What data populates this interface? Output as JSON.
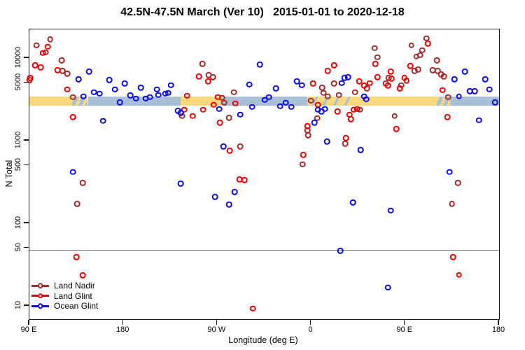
{
  "title": "42.5N-47.5N March (Ver 10)   2015-01-01 to 2020-12-18",
  "legend": {
    "entries": [
      {
        "label": "Land Nadir",
        "color": "#A52A2A"
      },
      {
        "label": "Land Glint",
        "color": "#F00000"
      },
      {
        "label": "Ocean Glint",
        "color": "#0A0AF0"
      }
    ]
  },
  "colors": {
    "band_land": "#FAD87C",
    "band_ocean": "#A9BFD8",
    "reference_line": "#7e7e7e",
    "axis": "#1a1a1a"
  },
  "chart_data": {
    "type": "scatter",
    "title": "42.5N-47.5N March (Ver 10)   2015-01-01 to 2020-12-18",
    "xlabel": "Longitude (deg E)",
    "ylabel": "N Total",
    "x_axis": {
      "range": [
        90,
        540
      ],
      "ticks": [
        90,
        180,
        270,
        360,
        450,
        540
      ],
      "labels": [
        "90 E",
        "180",
        "90 W",
        "0",
        "90 E",
        "180"
      ]
    },
    "y_axis": {
      "scale": "log",
      "range": [
        6.9,
        22200
      ],
      "ticks": [
        10,
        50,
        100,
        500,
        1000,
        5000,
        10000
      ],
      "labels": [
        "10",
        "50",
        "100",
        "500",
        "1000",
        "5000",
        "10000"
      ]
    },
    "reference_line": {
      "value": 48
    },
    "band": {
      "value_min": 2660,
      "value_max": 3440,
      "segments": [
        {
          "from": 90,
          "to": 131,
          "surface": "land"
        },
        {
          "from": 131,
          "to": 146,
          "surface": "mixed"
        },
        {
          "from": 146,
          "to": 235,
          "surface": "ocean"
        },
        {
          "from": 235,
          "to": 275,
          "surface": "land"
        },
        {
          "from": 275,
          "to": 356,
          "surface": "ocean"
        },
        {
          "from": 356,
          "to": 401,
          "surface": "land_mixed"
        },
        {
          "from": 401,
          "to": 480,
          "surface": "land"
        },
        {
          "from": 480,
          "to": 493,
          "surface": "mixed"
        },
        {
          "from": 493,
          "to": 540,
          "surface": "ocean"
        }
      ]
    },
    "series": [
      {
        "name": "Land Nadir",
        "color": "#A52A2A",
        "points": [
          [
            110,
            16900
          ],
          [
            96.7,
            14200
          ],
          [
            105.4,
            11700
          ],
          [
            120.8,
            9400
          ],
          [
            121.5,
            7000
          ],
          [
            126.2,
            6470
          ],
          [
            131.6,
            3370
          ],
          [
            141,
            310
          ],
          [
            135.6,
            171
          ],
          [
            236.2,
            1980
          ],
          [
            255.7,
            8520
          ],
          [
            261.7,
            6200
          ],
          [
            265.7,
            5860
          ],
          [
            274.4,
            3300
          ],
          [
            276.4,
            2880
          ],
          [
            281.1,
            1900
          ],
          [
            285.8,
            3870
          ],
          [
            291.9,
            847
          ],
          [
            351.5,
            518
          ],
          [
            356.2,
            1330
          ],
          [
            356.9,
            1162
          ],
          [
            359.6,
            3050
          ],
          [
            365.6,
            1870
          ],
          [
            370.3,
            4360
          ],
          [
            371.7,
            3790
          ],
          [
            375.7,
            3440
          ],
          [
            381.7,
            4900
          ],
          [
            386.4,
            3570
          ],
          [
            392.5,
            916
          ],
          [
            401.8,
            3870
          ],
          [
            406.5,
            2360
          ],
          [
            413.2,
            4280
          ],
          [
            420.6,
            13200
          ],
          [
            423.3,
            10200
          ],
          [
            431.4,
            4900
          ],
          [
            434,
            5740
          ],
          [
            440,
            1980
          ],
          [
            446.1,
            4700
          ],
          [
            456.1,
            14300
          ],
          [
            458.8,
            7000
          ],
          [
            460.8,
            10450
          ],
          [
            462.2,
            7280
          ],
          [
            464.2,
            10850
          ],
          [
            466.2,
            12450
          ],
          [
            470.2,
            17300
          ],
          [
            476.3,
            7140
          ],
          [
            480.3,
            9400
          ],
          [
            481,
            7000
          ],
          [
            484.3,
            6340
          ],
          [
            487,
            5960
          ],
          [
            491,
            3370
          ],
          [
            495,
            171
          ],
          [
            500.4,
            310
          ]
        ]
      },
      {
        "name": "Land Glint",
        "color": "#F00000",
        "points": [
          [
            90,
            5400
          ],
          [
            90.7,
            5740
          ],
          [
            95.4,
            8200
          ],
          [
            100.7,
            7700
          ],
          [
            102.7,
            11500
          ],
          [
            107.4,
            13700
          ],
          [
            116.8,
            7100
          ],
          [
            126.2,
            4160
          ],
          [
            131.6,
            1940
          ],
          [
            134.9,
            39
          ],
          [
            141,
            23.4
          ],
          [
            238.2,
            2360
          ],
          [
            240.9,
            3490
          ],
          [
            246.3,
            1980
          ],
          [
            252.3,
            5990
          ],
          [
            256.3,
            2360
          ],
          [
            261,
            5200
          ],
          [
            266.4,
            2710
          ],
          [
            270.4,
            3370
          ],
          [
            272.4,
            1660
          ],
          [
            281.8,
            758
          ],
          [
            287.2,
            2820
          ],
          [
            291.2,
            342
          ],
          [
            295.9,
            335
          ],
          [
            304,
            9.3
          ],
          [
            352.2,
            672
          ],
          [
            356.2,
            1500
          ],
          [
            361.6,
            4900
          ],
          [
            366.3,
            2710
          ],
          [
            375.7,
            7000
          ],
          [
            381.7,
            8180
          ],
          [
            385.1,
            2260
          ],
          [
            393.1,
            1077
          ],
          [
            396.5,
            2060
          ],
          [
            397.8,
            1830
          ],
          [
            400.5,
            2360
          ],
          [
            403.8,
            2410
          ],
          [
            405.9,
            5200
          ],
          [
            410.6,
            4650
          ],
          [
            415.9,
            4990
          ],
          [
            421.3,
            8520
          ],
          [
            423.3,
            5850
          ],
          [
            433.4,
            4650
          ],
          [
            436,
            6860
          ],
          [
            436.7,
            5630
          ],
          [
            441.4,
            1380
          ],
          [
            444.8,
            4280
          ],
          [
            449.4,
            5740
          ],
          [
            451.4,
            5300
          ],
          [
            454.8,
            8000
          ],
          [
            471.6,
            14900
          ],
          [
            485.7,
            4080
          ],
          [
            490.4,
            1940
          ],
          [
            495.7,
            39
          ],
          [
            501.7,
            23.7
          ]
        ]
      },
      {
        "name": "Ocean Glint",
        "color": "#0A0AF0",
        "points": [
          [
            131.6,
            418
          ],
          [
            136.9,
            5520
          ],
          [
            141.6,
            3440
          ],
          [
            147,
            6860
          ],
          [
            151.7,
            3870
          ],
          [
            157.1,
            3710
          ],
          [
            160.4,
            1730
          ],
          [
            166.5,
            5400
          ],
          [
            171.8,
            4160
          ],
          [
            176.5,
            2920
          ],
          [
            181.2,
            4900
          ],
          [
            186.6,
            3520
          ],
          [
            192,
            3230
          ],
          [
            196.6,
            4360
          ],
          [
            201.3,
            3230
          ],
          [
            205.4,
            3370
          ],
          [
            212,
            4160
          ],
          [
            213.4,
            3570
          ],
          [
            220.1,
            3710
          ],
          [
            222.8,
            3790
          ],
          [
            225.5,
            4700
          ],
          [
            232.2,
            2310
          ],
          [
            234.9,
            2170
          ],
          [
            234.9,
            303
          ],
          [
            267.7,
            209
          ],
          [
            271.7,
            2410
          ],
          [
            275.8,
            846
          ],
          [
            281.1,
            168
          ],
          [
            286.5,
            240
          ],
          [
            291.9,
            2060
          ],
          [
            300.6,
            4800
          ],
          [
            303.3,
            2560
          ],
          [
            310.6,
            8350
          ],
          [
            315.3,
            3120
          ],
          [
            319.4,
            3370
          ],
          [
            326.1,
            4280
          ],
          [
            330.1,
            2610
          ],
          [
            335.5,
            2880
          ],
          [
            340.8,
            2560
          ],
          [
            346.2,
            5200
          ],
          [
            350.9,
            4700
          ],
          [
            362.9,
            1660
          ],
          [
            366.3,
            2360
          ],
          [
            369.7,
            2260
          ],
          [
            373,
            2410
          ],
          [
            375,
            972
          ],
          [
            387.8,
            46.5
          ],
          [
            389.1,
            4990
          ],
          [
            391.8,
            5740
          ],
          [
            395.2,
            5850
          ],
          [
            399.8,
            178
          ],
          [
            407.2,
            768
          ],
          [
            410.6,
            3440
          ],
          [
            412.6,
            3170
          ],
          [
            433.4,
            16.7
          ],
          [
            436,
            143
          ],
          [
            492.4,
            418
          ],
          [
            497.1,
            5520
          ],
          [
            501.7,
            3440
          ],
          [
            507.1,
            6860
          ],
          [
            511.8,
            3950
          ],
          [
            516.5,
            3950
          ],
          [
            520.5,
            1770
          ],
          [
            526.6,
            5520
          ],
          [
            530.6,
            4160
          ],
          [
            536,
            2920
          ]
        ]
      }
    ]
  }
}
